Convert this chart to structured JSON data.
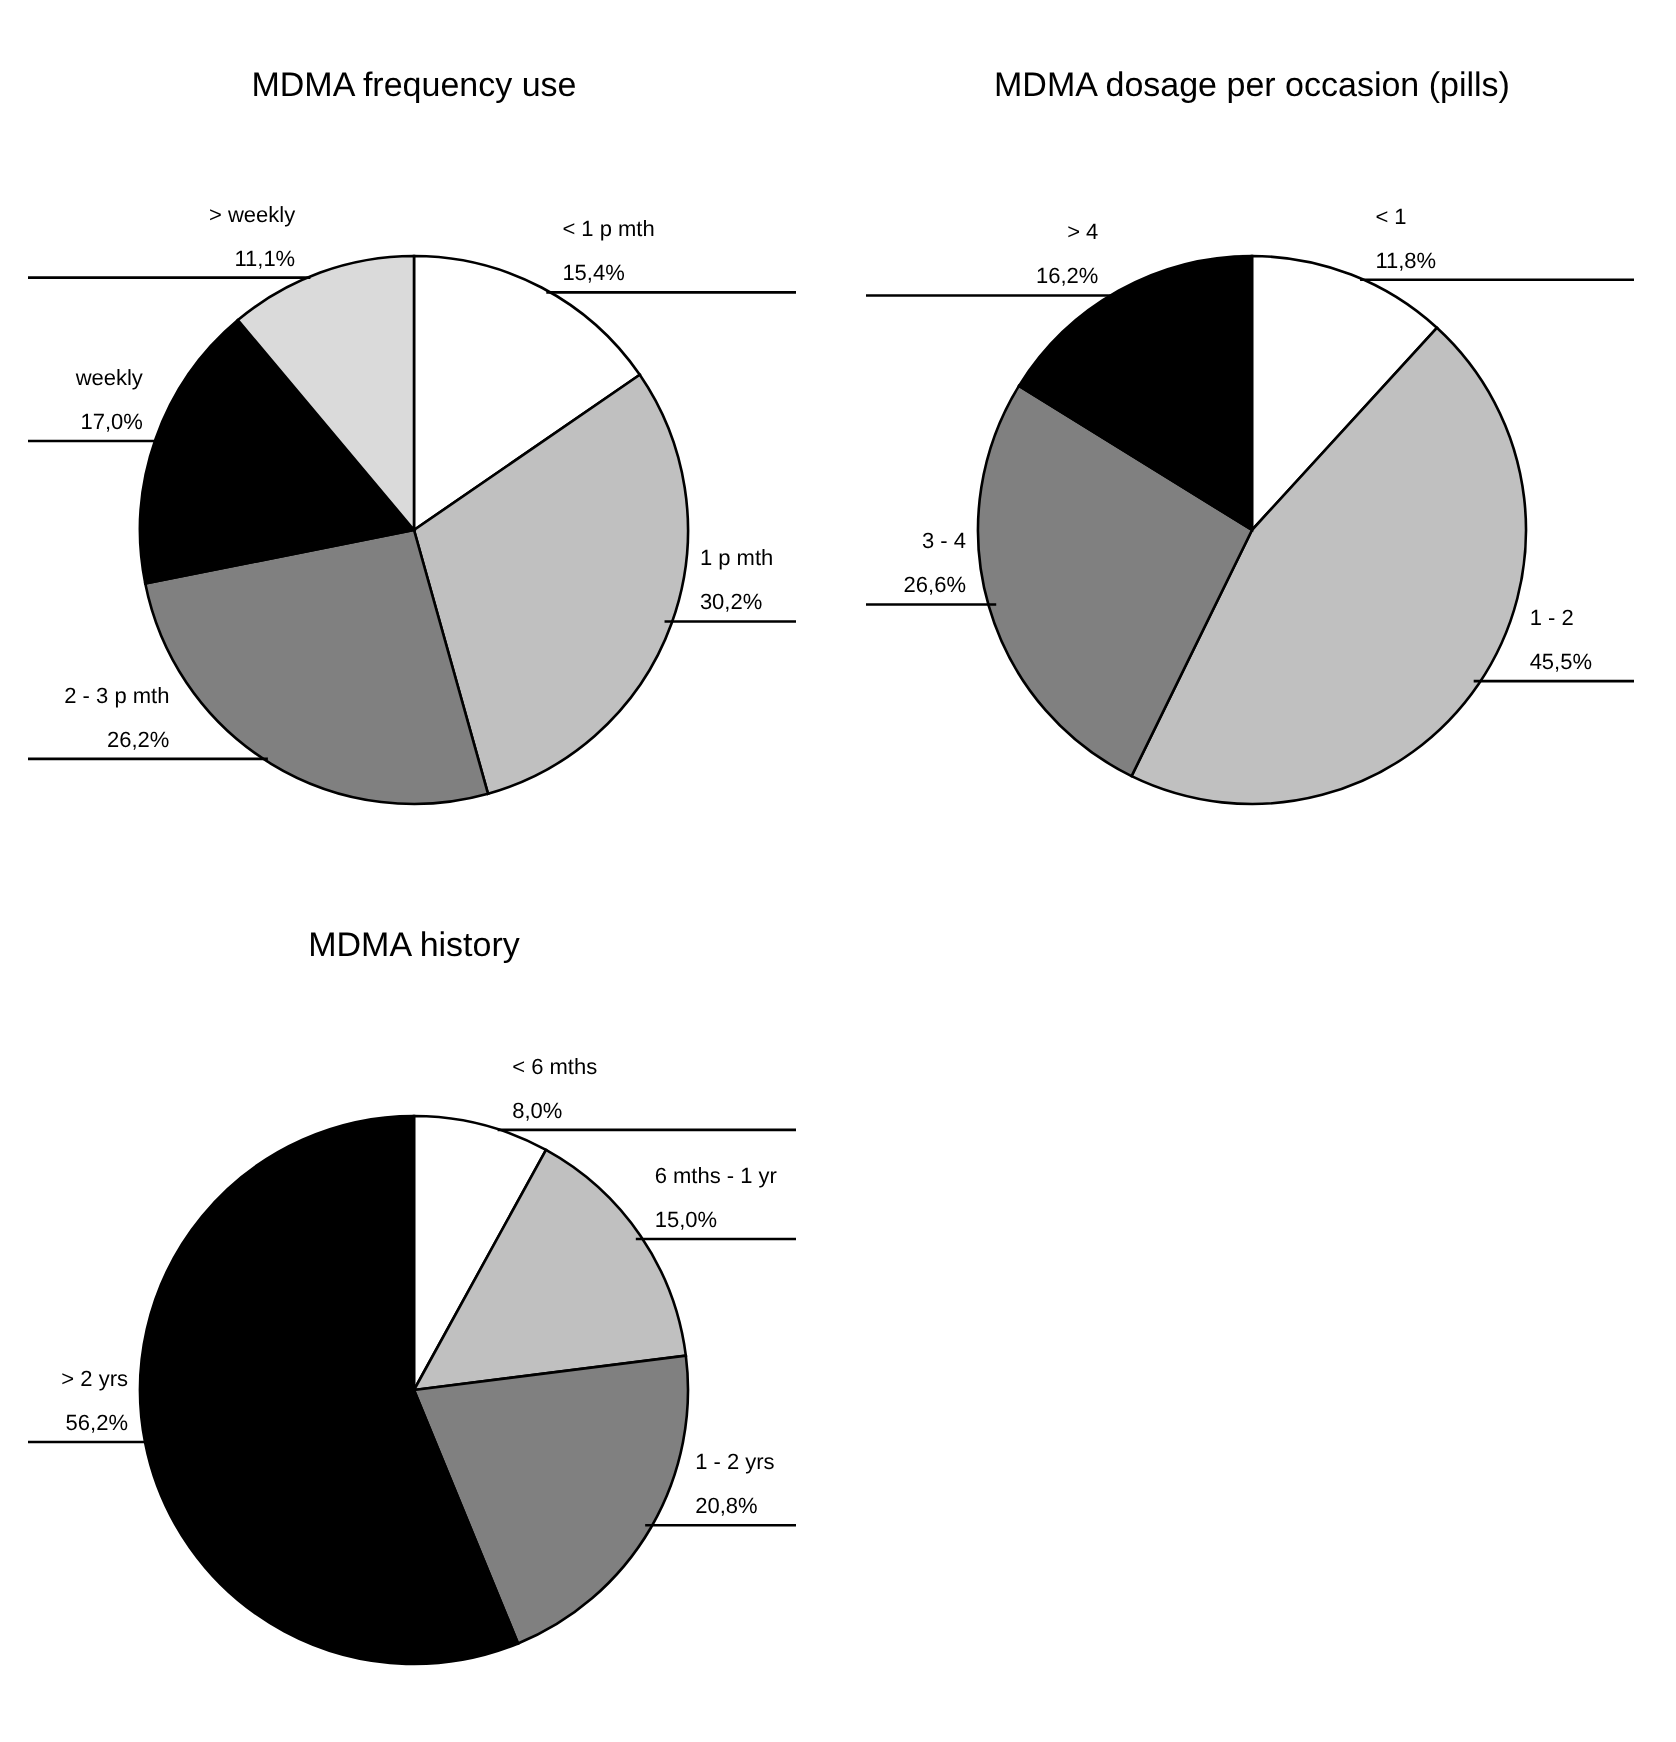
{
  "chart_data": [
    {
      "type": "pie",
      "title": "MDMA frequency use",
      "categories": [
        "< 1 p mth",
        "1 p mth",
        "2 - 3 p mth",
        "weekly",
        "> weekly"
      ],
      "values": [
        15.4,
        30.2,
        26.2,
        17.0,
        11.1
      ],
      "value_labels": [
        "15,4%",
        "30,2%",
        "26,2%",
        "17,0%",
        "11,1%"
      ],
      "colors": [
        "#ffffff",
        "#c0c0c0",
        "#808080",
        "#000000",
        "#dadada"
      ]
    },
    {
      "type": "pie",
      "title": "MDMA dosage per occasion (pills)",
      "categories": [
        "< 1",
        "1 - 2",
        "3 - 4",
        "> 4"
      ],
      "values": [
        11.8,
        45.5,
        26.6,
        16.2
      ],
      "value_labels": [
        "11,8%",
        "45,5%",
        "26,6%",
        "16,2%"
      ],
      "colors": [
        "#ffffff",
        "#c0c0c0",
        "#808080",
        "#000000"
      ]
    },
    {
      "type": "pie",
      "title": "MDMA history",
      "categories": [
        "< 6 mths",
        "6 mths - 1 yr",
        "1 - 2 yrs",
        "> 2 yrs"
      ],
      "values": [
        8.0,
        15.0,
        20.8,
        56.2
      ],
      "value_labels": [
        "8,0%",
        "15,0%",
        "20,8%",
        "56,2%"
      ],
      "colors": [
        "#ffffff",
        "#c0c0c0",
        "#808080",
        "#000000"
      ]
    }
  ]
}
